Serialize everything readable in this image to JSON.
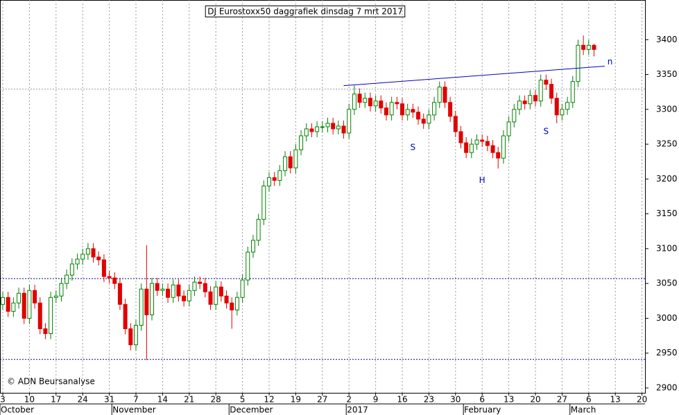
{
  "chart_data": {
    "type": "candlestick",
    "title": "DJ Eurostoxx50 daggrafiek dinsdag 7 mrt 2017",
    "copyright": "© ADN Beursanalyse",
    "ylim": [
      2893,
      3457
    ],
    "yticks": [
      2900,
      2950,
      3000,
      3050,
      3100,
      3150,
      3200,
      3250,
      3300,
      3350,
      3400
    ],
    "grid": true,
    "up_color": "#008000",
    "down_color": "#e00000",
    "categories": [
      "3",
      null,
      null,
      null,
      null,
      "10",
      null,
      null,
      null,
      null,
      "17",
      null,
      null,
      null,
      null,
      "24",
      null,
      null,
      null,
      null,
      "31",
      null,
      null,
      null,
      null,
      "7",
      null,
      null,
      null,
      null,
      "14",
      null,
      null,
      null,
      null,
      "21",
      null,
      null,
      null,
      null,
      "28",
      null,
      null,
      null,
      null,
      "5",
      null,
      null,
      null,
      null,
      "12",
      null,
      null,
      null,
      null,
      "19",
      null,
      null,
      null,
      null,
      "27",
      null,
      null,
      null,
      null,
      "2",
      null,
      null,
      null,
      null,
      "9",
      null,
      null,
      null,
      null,
      "16",
      null,
      null,
      null,
      null,
      "23",
      null,
      null,
      null,
      null,
      "30",
      null,
      null,
      null,
      null,
      "6",
      null,
      null,
      null,
      null,
      "13",
      null,
      null,
      null,
      null,
      "20",
      null,
      null,
      null,
      null,
      "27",
      null,
      null,
      null,
      null,
      "6",
      null,
      null,
      null,
      null,
      "13",
      null,
      null,
      null,
      null,
      "20"
    ],
    "month_labels": [
      {
        "label": "October",
        "category_index": 0
      },
      {
        "label": "November",
        "category_index": 21
      },
      {
        "label": "December",
        "category_index": 43
      },
      {
        "label": "2017",
        "category_index": 65
      },
      {
        "label": "February",
        "category_index": 87
      },
      {
        "label": "March",
        "category_index": 107
      }
    ],
    "open": [
      3020,
      3030,
      3010,
      3022,
      3036,
      3000,
      3040,
      3022,
      2985,
      2978,
      3030,
      3032,
      3050,
      3062,
      3078,
      3085,
      3092,
      3100,
      3088,
      3084,
      3060,
      3058,
      3050,
      3020,
      2985,
      2962,
      2990,
      3042,
      3005,
      3050,
      3040,
      3042,
      3030,
      3048,
      3032,
      3025,
      3040,
      3052,
      3050,
      3038,
      3020,
      3045,
      3032,
      3022,
      3012,
      3030,
      3055,
      3095,
      3112,
      3142,
      3190,
      3202,
      3198,
      3212,
      3232,
      3216,
      3242,
      3262,
      3272,
      3268,
      3275,
      3275,
      3280,
      3272,
      3276,
      3266,
      3300,
      3322,
      3310,
      3316,
      3305,
      3312,
      3302,
      3292,
      3310,
      3308,
      3292,
      3300,
      3296,
      3286,
      3280,
      3292,
      3310,
      3332,
      3310,
      3290,
      3268,
      3252,
      3238,
      3250,
      3256,
      3254,
      3248,
      3238,
      3230,
      3262,
      3282,
      3300,
      3312,
      3308,
      3320,
      3312,
      3342,
      3336,
      3316,
      3292,
      3300,
      3310,
      3340,
      3392,
      3386,
      3392,
      null,
      null,
      null,
      null,
      null,
      null,
      null,
      null,
      null
    ],
    "high": [
      3038,
      3038,
      3030,
      3044,
      3044,
      3048,
      3048,
      3030,
      2993,
      3038,
      3040,
      3058,
      3070,
      3086,
      3093,
      3100,
      3108,
      3108,
      3096,
      3092,
      3068,
      3066,
      3058,
      3028,
      2993,
      2998,
      3050,
      3105,
      3058,
      3058,
      3050,
      3050,
      3056,
      3056,
      3040,
      3048,
      3060,
      3060,
      3058,
      3046,
      3053,
      3053,
      3040,
      3030,
      3038,
      3063,
      3103,
      3120,
      3150,
      3198,
      3210,
      3210,
      3220,
      3240,
      3240,
      3250,
      3270,
      3280,
      3280,
      3283,
      3283,
      3288,
      3288,
      3284,
      3284,
      3308,
      3334,
      3330,
      3324,
      3324,
      3320,
      3320,
      3310,
      3318,
      3318,
      3316,
      3308,
      3308,
      3304,
      3294,
      3300,
      3318,
      3340,
      3340,
      3318,
      3298,
      3276,
      3260,
      3258,
      3264,
      3264,
      3262,
      3256,
      3246,
      3270,
      3290,
      3308,
      3320,
      3320,
      3328,
      3328,
      3350,
      3350,
      3344,
      3324,
      3308,
      3318,
      3348,
      3400,
      3406,
      3400,
      3394,
      null,
      null,
      null,
      null,
      null,
      null,
      null,
      null,
      null
    ],
    "low": [
      3012,
      3002,
      3002,
      3014,
      2992,
      2992,
      3014,
      2977,
      2970,
      2970,
      3022,
      3024,
      3042,
      3054,
      3070,
      3077,
      3084,
      3080,
      3076,
      3052,
      3050,
      3042,
      3012,
      2977,
      2954,
      2954,
      2982,
      2940,
      2997,
      3032,
      3032,
      3022,
      3022,
      3024,
      3017,
      3017,
      3032,
      3042,
      3030,
      3012,
      3012,
      3024,
      3014,
      2985,
      3004,
      3022,
      3047,
      3087,
      3104,
      3134,
      3182,
      3190,
      3190,
      3204,
      3208,
      3208,
      3234,
      3254,
      3260,
      3260,
      3267,
      3267,
      3264,
      3264,
      3258,
      3258,
      3292,
      3302,
      3302,
      3297,
      3297,
      3294,
      3284,
      3284,
      3300,
      3284,
      3284,
      3288,
      3278,
      3272,
      3272,
      3284,
      3302,
      3302,
      3282,
      3260,
      3244,
      3230,
      3230,
      3242,
      3246,
      3240,
      3230,
      3215,
      3222,
      3254,
      3274,
      3292,
      3300,
      3300,
      3304,
      3304,
      3328,
      3308,
      3280,
      3284,
      3292,
      3302,
      3332,
      3378,
      3378,
      3376,
      null,
      null,
      null,
      null,
      null,
      null,
      null,
      null,
      null
    ],
    "close": [
      3030,
      3010,
      3022,
      3036,
      3000,
      3040,
      3022,
      2985,
      2978,
      3030,
      3032,
      3050,
      3062,
      3078,
      3085,
      3092,
      3100,
      3088,
      3084,
      3060,
      3058,
      3050,
      3020,
      2985,
      2962,
      2990,
      3042,
      3005,
      3050,
      3040,
      3042,
      3030,
      3048,
      3032,
      3025,
      3040,
      3052,
      3050,
      3038,
      3020,
      3045,
      3032,
      3022,
      3012,
      3030,
      3055,
      3095,
      3112,
      3142,
      3190,
      3202,
      3198,
      3212,
      3232,
      3216,
      3242,
      3262,
      3272,
      3268,
      3275,
      3275,
      3280,
      3272,
      3276,
      3266,
      3300,
      3322,
      3310,
      3316,
      3305,
      3312,
      3302,
      3292,
      3310,
      3308,
      3292,
      3300,
      3296,
      3286,
      3280,
      3292,
      3310,
      3332,
      3310,
      3290,
      3268,
      3252,
      3238,
      3250,
      3256,
      3254,
      3248,
      3238,
      3230,
      3262,
      3282,
      3300,
      3312,
      3308,
      3320,
      3312,
      3342,
      3336,
      3316,
      3292,
      3300,
      3310,
      3340,
      3392,
      3386,
      3392,
      3386,
      null,
      null,
      null,
      null,
      null,
      null,
      null,
      null,
      null
    ],
    "levels": [
      3329,
      3057,
      2941
    ],
    "trendline": {
      "from_index": 64,
      "from": 3334,
      "to_index": 113,
      "to": 3362,
      "color": "#0000c0"
    },
    "annotations": [
      {
        "text": "S",
        "category_index": 77,
        "value": 3245
      },
      {
        "text": "H",
        "category_index": 90,
        "value": 3198
      },
      {
        "text": "S",
        "category_index": 102,
        "value": 3268
      },
      {
        "text": "n",
        "category_index": 114,
        "value": 3368
      }
    ]
  }
}
